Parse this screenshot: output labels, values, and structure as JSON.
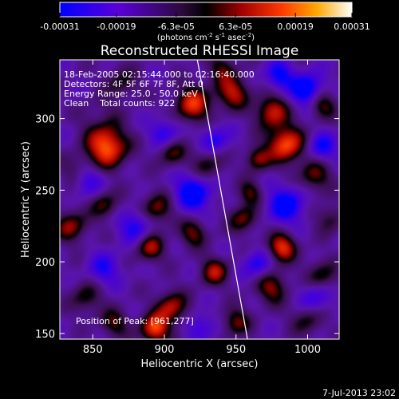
{
  "chart_data": {
    "type": "heatmap",
    "title": "Reconstructed RHESSI Image",
    "xlabel": "Heliocentric X (arcsec)",
    "ylabel": "Heliocentric Y (arcsec)",
    "xlim": [
      827,
      1022
    ],
    "ylim": [
      146,
      341
    ],
    "x_ticks": [
      850,
      900,
      950,
      1000
    ],
    "y_ticks": [
      150,
      200,
      250,
      300
    ],
    "colorbar": {
      "ticks": [
        "-0.00031",
        "-0.00019",
        "-6.3e-05",
        "6.3e-05",
        "0.00019",
        "0.00031"
      ],
      "values": [
        -0.00031,
        -0.00019,
        -6.3e-05,
        6.3e-05,
        0.00019,
        0.00031
      ],
      "units_text": "(photons cm",
      "units_sup1": "-2",
      "units_mid": " s",
      "units_sup2": "-1",
      "units_mid2": " asec",
      "units_sup3": "-2",
      "units_end": ")"
    },
    "annotations": [
      "18-Feb-2005 02:15:44.000 to 02:16:40.000",
      "Detectors: 4F 5F 6F 7F 8F, Att 0",
      "Energy Range: 25.0 - 50.0 keV",
      "Clean    Total counts: 922"
    ],
    "peak_label": "Position of Peak: [961,277]",
    "limb": [
      [
        923,
        341
      ],
      [
        958,
        146
      ]
    ],
    "peaks": [
      {
        "x": 860,
        "y": 280,
        "v": 1.0,
        "s": 10
      },
      {
        "x": 855,
        "y": 300,
        "v": 0.75,
        "s": 8
      },
      {
        "x": 920,
        "y": 310,
        "v": 0.8,
        "s": 9
      },
      {
        "x": 948,
        "y": 318,
        "v": 0.7,
        "s": 8
      },
      {
        "x": 985,
        "y": 282,
        "v": 0.95,
        "s": 9
      },
      {
        "x": 975,
        "y": 305,
        "v": 0.75,
        "s": 8
      },
      {
        "x": 1010,
        "y": 310,
        "v": 0.6,
        "s": 7
      },
      {
        "x": 1005,
        "y": 260,
        "v": 0.55,
        "s": 8
      },
      {
        "x": 965,
        "y": 272,
        "v": 0.6,
        "s": 6
      },
      {
        "x": 840,
        "y": 262,
        "v": 0.55,
        "s": 8
      },
      {
        "x": 835,
        "y": 225,
        "v": 0.6,
        "s": 8
      },
      {
        "x": 858,
        "y": 240,
        "v": 0.5,
        "s": 7
      },
      {
        "x": 895,
        "y": 237,
        "v": 0.6,
        "s": 8
      },
      {
        "x": 890,
        "y": 210,
        "v": 0.65,
        "s": 7
      },
      {
        "x": 920,
        "y": 220,
        "v": 0.55,
        "s": 7
      },
      {
        "x": 935,
        "y": 193,
        "v": 0.65,
        "s": 7
      },
      {
        "x": 905,
        "y": 168,
        "v": 0.7,
        "s": 8
      },
      {
        "x": 893,
        "y": 153,
        "v": 0.9,
        "s": 7
      },
      {
        "x": 865,
        "y": 157,
        "v": 0.5,
        "s": 7
      },
      {
        "x": 950,
        "y": 158,
        "v": 0.55,
        "s": 7
      },
      {
        "x": 975,
        "y": 182,
        "v": 0.6,
        "s": 8
      },
      {
        "x": 982,
        "y": 210,
        "v": 0.85,
        "s": 7
      },
      {
        "x": 1010,
        "y": 190,
        "v": 0.5,
        "s": 8
      },
      {
        "x": 955,
        "y": 230,
        "v": 0.55,
        "s": 7
      },
      {
        "x": 960,
        "y": 248,
        "v": 0.5,
        "s": 6
      },
      {
        "x": 930,
        "y": 268,
        "v": 0.45,
        "s": 8
      },
      {
        "x": 1000,
        "y": 160,
        "v": 0.45,
        "s": 8
      },
      {
        "x": 940,
        "y": 335,
        "v": 0.45,
        "s": 7
      },
      {
        "x": 870,
        "y": 325,
        "v": 0.4,
        "s": 8
      },
      {
        "x": 845,
        "y": 175,
        "v": 0.45,
        "s": 8
      },
      {
        "x": 905,
        "y": 276,
        "v": 0.5,
        "s": 7
      },
      {
        "x": 1015,
        "y": 230,
        "v": 0.4,
        "s": 7
      }
    ],
    "troughs": [
      {
        "x": 855,
        "y": 300,
        "v": -0.6,
        "s": 7
      },
      {
        "x": 845,
        "y": 258,
        "v": -0.7,
        "s": 8
      },
      {
        "x": 880,
        "y": 225,
        "v": -0.55,
        "s": 8
      },
      {
        "x": 920,
        "y": 248,
        "v": -0.75,
        "s": 9
      },
      {
        "x": 985,
        "y": 240,
        "v": -0.7,
        "s": 9
      },
      {
        "x": 1000,
        "y": 320,
        "v": -0.8,
        "s": 8
      },
      {
        "x": 980,
        "y": 330,
        "v": -0.6,
        "s": 7
      },
      {
        "x": 1010,
        "y": 280,
        "v": -0.55,
        "s": 7
      },
      {
        "x": 935,
        "y": 285,
        "v": -0.5,
        "s": 7
      },
      {
        "x": 900,
        "y": 290,
        "v": -0.5,
        "s": 7
      },
      {
        "x": 965,
        "y": 198,
        "v": -0.5,
        "s": 7
      },
      {
        "x": 858,
        "y": 195,
        "v": -0.45,
        "s": 8
      },
      {
        "x": 1005,
        "y": 175,
        "v": -0.5,
        "s": 8
      },
      {
        "x": 925,
        "y": 155,
        "v": -0.4,
        "s": 7
      }
    ]
  },
  "date_stamp": "7-Jul-2013 23:02"
}
